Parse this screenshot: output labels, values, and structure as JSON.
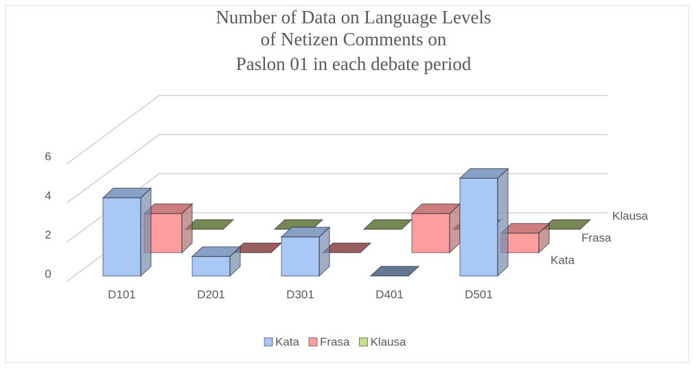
{
  "chart_data": {
    "type": "bar3d",
    "title": [
      "Number of Data on Language Levels",
      "of Netizen Comments on",
      "Paslon 01 in each debate period"
    ],
    "categories": [
      "D101",
      "D201",
      "D301",
      "D401",
      "D501"
    ],
    "series": [
      {
        "name": "Kata",
        "color": "#a9c8f5",
        "values": [
          4,
          1,
          2,
          0,
          5
        ]
      },
      {
        "name": "Frasa",
        "color": "#ff9e9e",
        "values": [
          2,
          0,
          0,
          2,
          1
        ]
      },
      {
        "name": "Klausa",
        "color": "#c4e18b",
        "values": [
          0,
          0,
          0,
          0,
          0
        ]
      }
    ],
    "ylim": [
      0,
      6
    ],
    "yticks": [
      0,
      2,
      4,
      6
    ],
    "grid": true,
    "legend": "bottom"
  }
}
